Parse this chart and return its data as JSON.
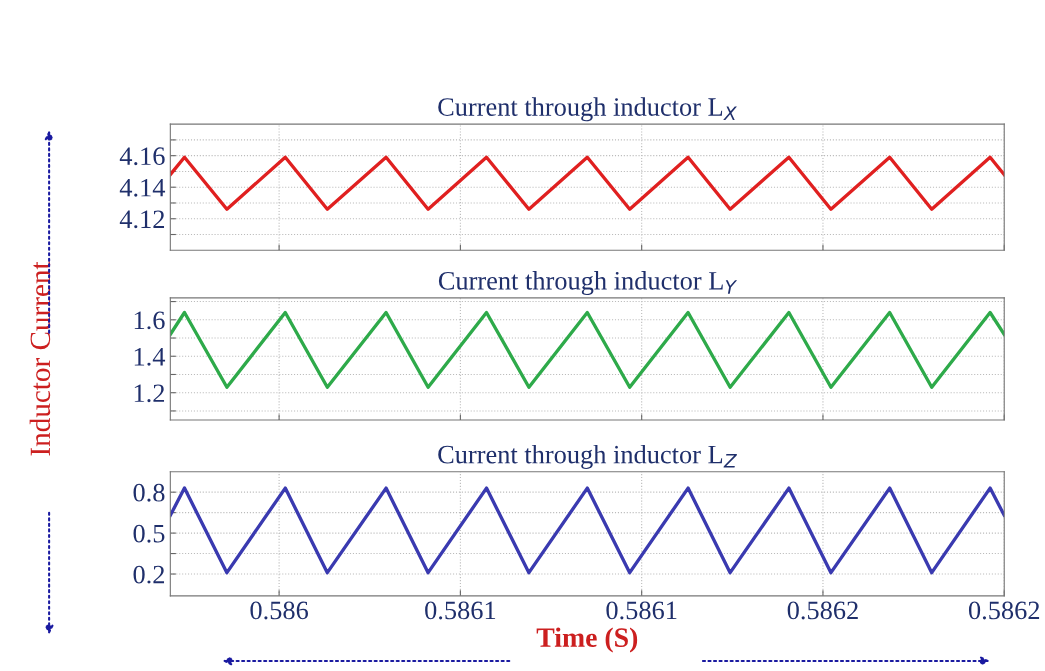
{
  "chart_data": [
    {
      "type": "line",
      "title": "Current through inductor L$_{X}$",
      "x": [
        0.58597,
        0.5859739,
        0.5859856,
        0.5860017,
        0.5860133,
        0.5860295,
        0.5860411,
        0.5860572,
        0.5860689,
        0.586085,
        0.5860967,
        0.5861128,
        0.5861244,
        0.5861406,
        0.5861522,
        0.5861684,
        0.58618,
        0.5861961,
        0.5862
      ],
      "series": [
        {
          "color": "#e02020",
          "values": [
            4.148,
            4.159,
            4.126,
            4.159,
            4.126,
            4.159,
            4.126,
            4.159,
            4.126,
            4.159,
            4.126,
            4.159,
            4.126,
            4.159,
            4.126,
            4.159,
            4.126,
            4.159,
            4.148
          ]
        }
      ],
      "xlim": [
        0.58597,
        0.5862
      ],
      "xticks": [
        {
          "value": 0.586,
          "label": null
        },
        {
          "value": 0.58605,
          "label": null
        },
        {
          "value": 0.5861,
          "label": null
        },
        {
          "value": 0.58615,
          "label": null
        },
        {
          "value": 0.5862,
          "label": null
        }
      ],
      "ylim": [
        4.1,
        4.18
      ],
      "yticks": [
        {
          "value": 4.11,
          "label": null
        },
        4.12,
        {
          "value": 4.13,
          "label": null
        },
        4.14,
        {
          "value": 4.15,
          "label": null
        },
        4.16,
        {
          "value": 4.17,
          "label": null
        }
      ],
      "tick_labels": "y",
      "grid": true
    },
    {
      "type": "line",
      "title": "Current through inductor L$_{Y}$",
      "ylabel": "Inductor Current",
      "x": [
        0.58597,
        0.5859739,
        0.5859856,
        0.5860017,
        0.5860133,
        0.5860295,
        0.5860411,
        0.5860572,
        0.5860689,
        0.586085,
        0.5860967,
        0.5861128,
        0.5861244,
        0.5861406,
        0.5861522,
        0.5861684,
        0.58618,
        0.5861961,
        0.5862
      ],
      "series": [
        {
          "color": "#2eaa4a",
          "values": [
            1.52,
            1.64,
            1.23,
            1.64,
            1.23,
            1.64,
            1.23,
            1.64,
            1.23,
            1.64,
            1.23,
            1.64,
            1.23,
            1.64,
            1.23,
            1.64,
            1.23,
            1.64,
            1.52
          ]
        }
      ],
      "xlim": [
        0.58597,
        0.5862
      ],
      "xticks": [
        {
          "value": 0.586,
          "label": null
        },
        {
          "value": 0.58605,
          "label": null
        },
        {
          "value": 0.5861,
          "label": null
        },
        {
          "value": 0.58615,
          "label": null
        },
        {
          "value": 0.5862,
          "label": null
        }
      ],
      "ylim": [
        1.05,
        1.72
      ],
      "yticks": [
        {
          "value": 1.1,
          "label": null
        },
        1.2,
        {
          "value": 1.3,
          "label": null
        },
        1.4,
        {
          "value": 1.5,
          "label": null
        },
        1.6,
        {
          "value": 1.7,
          "label": null
        }
      ],
      "tick_labels": "y",
      "grid": true
    },
    {
      "type": "line",
      "title": "Current through inductor L$_{Z}$",
      "xlabel": "Time (S)",
      "x": [
        0.58597,
        0.5859739,
        0.5859856,
        0.5860017,
        0.5860133,
        0.5860295,
        0.5860411,
        0.5860572,
        0.5860689,
        0.586085,
        0.5860967,
        0.5861128,
        0.5861244,
        0.5861406,
        0.5861522,
        0.5861684,
        0.58618,
        0.5861961,
        0.5862
      ],
      "series": [
        {
          "color": "#3a3ab0",
          "values": [
            0.63,
            0.83,
            0.21,
            0.83,
            0.21,
            0.83,
            0.21,
            0.83,
            0.21,
            0.83,
            0.21,
            0.83,
            0.21,
            0.83,
            0.21,
            0.83,
            0.21,
            0.83,
            0.63
          ]
        }
      ],
      "xlim": [
        0.58597,
        0.5862
      ],
      "xticks": [
        {
          "value": 0.586,
          "label": "0.586"
        },
        {
          "value": 0.58605,
          "label": "0.5861"
        },
        {
          "value": 0.5861,
          "label": "0.5861"
        },
        {
          "value": 0.58615,
          "label": "0.5862"
        },
        {
          "value": 0.5862,
          "label": "0.5862"
        }
      ],
      "ylim": [
        0.04,
        0.95
      ],
      "yticks": [
        0.2,
        {
          "value": 0.35,
          "label": null
        },
        0.5,
        {
          "value": 0.65,
          "label": null
        },
        0.8
      ],
      "grid": true
    }
  ]
}
